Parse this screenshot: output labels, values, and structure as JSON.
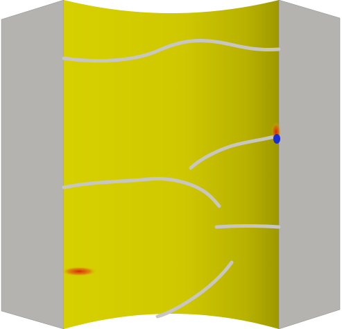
{
  "scene": {
    "colors": {
      "background": "#ffffff",
      "side_panel": "#b4b3b0",
      "side_panel_edge": "#8c8b88",
      "field_base": "#d7d000",
      "field_shade": "#9e9800",
      "crack": "#c7c6c1",
      "hot_spot": "#d8240a",
      "cold_spot": "#1a2fd1"
    },
    "panels": [
      {
        "name": "left-side-panel"
      },
      {
        "name": "right-side-panel"
      }
    ],
    "cracks": [
      {
        "name": "crack-top"
      },
      {
        "name": "crack-upper-right"
      },
      {
        "name": "crack-middle"
      },
      {
        "name": "crack-lower-right"
      },
      {
        "name": "crack-bottom"
      }
    ],
    "spots": [
      {
        "name": "hot-spot-left"
      },
      {
        "name": "hot-spot-right"
      },
      {
        "name": "cold-spot-right"
      }
    ]
  }
}
